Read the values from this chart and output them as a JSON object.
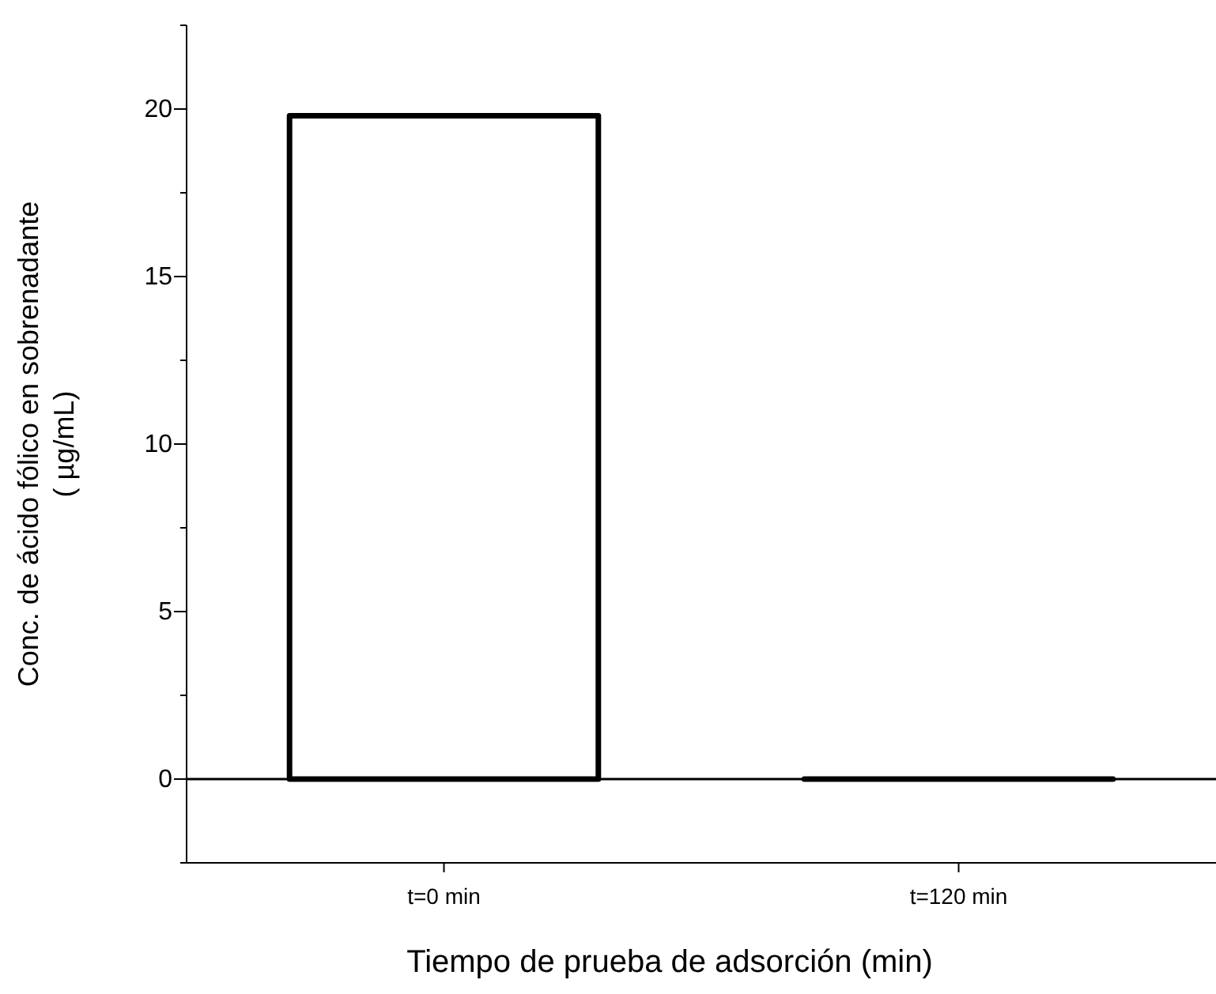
{
  "chart_data": {
    "type": "bar",
    "xlabel": "Tiempo de prueba de adsorción (min)",
    "ylabel": "Conc. de ácido fólico en sobrenadante\n( µg/mL)",
    "categories": [
      "t=0 min",
      "t=120 min"
    ],
    "series": [
      {
        "colors": [
          "#ffffff",
          "#000000"
        ],
        "values": [
          19.8,
          0
        ]
      }
    ],
    "ylim": [
      -2.5,
      22.5
    ],
    "yticks": [
      {
        "value": -2.5,
        "label": null
      },
      0,
      {
        "value": 2.5,
        "label": null
      },
      5,
      {
        "value": 7.5,
        "label": null
      },
      10,
      {
        "value": 12.5,
        "label": null
      },
      15,
      {
        "value": 17.5,
        "label": null
      },
      20,
      {
        "value": 22.5,
        "label": null
      }
    ],
    "ref_lines": [
      {
        "axis": "y",
        "value": 0,
        "color": "#000000"
      }
    ],
    "grid": false
  }
}
